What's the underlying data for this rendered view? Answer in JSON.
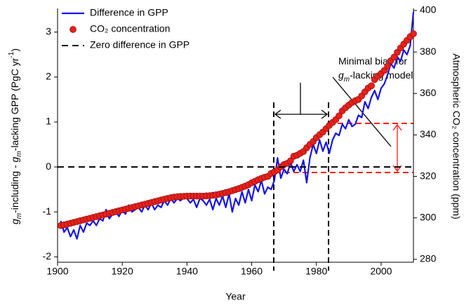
{
  "chart_data": {
    "type": "line-scatter-dual",
    "xlabel": "Year",
    "ylabel": [
      {
        "text": "g",
        "style": "italic"
      },
      {
        "text": "m",
        "style": "sub-italic"
      },
      {
        "text": "-including - "
      },
      {
        "text": "g",
        "style": "italic"
      },
      {
        "text": "m",
        "style": "sub-italic"
      },
      {
        "text": "-lacking GPP (PgC yr"
      },
      {
        "text": "-1",
        "style": "sup"
      },
      {
        "text": ")"
      }
    ],
    "y2label": "Atmospheric CO₂ concentration (ppm)",
    "annotation": [
      [
        {
          "text": "Minimal bias for"
        }
      ],
      [
        {
          "text": "g",
          "style": "italic"
        },
        {
          "text": "m",
          "style": "sub-italic"
        },
        {
          "text": "-lacking model"
        }
      ]
    ],
    "xlim": [
      1900,
      2010
    ],
    "xticks": [
      1900,
      1920,
      1940,
      1960,
      1980,
      2000
    ],
    "ylim": [
      -2.12,
      3.48
    ],
    "yticks": [
      -2,
      -1,
      0,
      1,
      2,
      3
    ],
    "y2lim": [
      278.6,
      400
    ],
    "y2ticks": [
      280,
      300,
      320,
      340,
      360,
      380,
      400
    ],
    "legend": "upper left",
    "series": [
      {
        "name": "Difference in GPP",
        "kind": "line",
        "color": "#1515e6",
        "x": [
          1901,
          1902,
          1903,
          1904,
          1905,
          1906,
          1907,
          1908,
          1909,
          1910,
          1911,
          1912,
          1913,
          1914,
          1915,
          1916,
          1917,
          1918,
          1919,
          1920,
          1921,
          1922,
          1923,
          1924,
          1925,
          1926,
          1927,
          1928,
          1929,
          1930,
          1931,
          1932,
          1933,
          1934,
          1935,
          1936,
          1937,
          1938,
          1939,
          1940,
          1941,
          1942,
          1943,
          1944,
          1945,
          1946,
          1947,
          1948,
          1949,
          1950,
          1951,
          1952,
          1953,
          1954,
          1955,
          1956,
          1957,
          1958,
          1959,
          1960,
          1961,
          1962,
          1963,
          1964,
          1965,
          1966,
          1967,
          1968,
          1969,
          1970,
          1971,
          1972,
          1973,
          1974,
          1975,
          1976,
          1977,
          1978,
          1979,
          1980,
          1981,
          1982,
          1983,
          1984,
          1985,
          1986,
          1987,
          1988,
          1989,
          1990,
          1991,
          1992,
          1993,
          1994,
          1995,
          1996,
          1997,
          1998,
          1999,
          2000,
          2001,
          2002,
          2003,
          2004,
          2005,
          2006,
          2007,
          2008,
          2009,
          2010
        ],
        "values": [
          -1.2,
          -1.45,
          -1.35,
          -1.55,
          -1.4,
          -1.6,
          -1.3,
          -1.45,
          -1.25,
          -1.3,
          -1.2,
          -1.3,
          -1.15,
          -1.2,
          -0.95,
          -1.15,
          -1.05,
          -1.0,
          -1.1,
          -0.95,
          -1.05,
          -0.85,
          -1.0,
          -0.95,
          -0.9,
          -1.0,
          -0.85,
          -0.95,
          -0.8,
          -0.95,
          -0.85,
          -0.9,
          -0.75,
          -0.85,
          -0.7,
          -0.8,
          -0.7,
          -0.75,
          -0.68,
          -0.7,
          -0.8,
          -0.72,
          -0.9,
          -0.7,
          -0.75,
          -0.85,
          -0.72,
          -0.95,
          -0.7,
          -0.85,
          -0.65,
          -0.9,
          -0.6,
          -1.0,
          -0.7,
          -0.85,
          -0.55,
          -0.8,
          -0.5,
          -0.75,
          -0.4,
          -0.55,
          -0.3,
          -0.6,
          -0.45,
          -0.5,
          -0.3,
          0.2,
          -0.25,
          -0.05,
          -0.15,
          0.1,
          -0.1,
          0.05,
          -0.1,
          0.15,
          -0.35,
          0.2,
          0.5,
          0.3,
          0.6,
          0.35,
          0.55,
          0.3,
          0.6,
          0.75,
          0.7,
          0.95,
          0.85,
          1.05,
          0.9,
          0.95,
          1.15,
          1.1,
          1.45,
          1.3,
          1.55,
          1.7,
          1.5,
          1.75,
          1.85,
          2.05,
          2.3,
          2.2,
          2.45,
          2.35,
          2.6,
          2.5,
          2.7,
          3.45
        ]
      },
      {
        "name": "CO₂ concentration",
        "kind": "scatter",
        "axis": "y2",
        "color": "#e8201a",
        "x": [
          1901,
          1902,
          1903,
          1904,
          1905,
          1906,
          1907,
          1908,
          1909,
          1910,
          1911,
          1912,
          1913,
          1914,
          1915,
          1916,
          1917,
          1918,
          1919,
          1920,
          1921,
          1922,
          1923,
          1924,
          1925,
          1926,
          1927,
          1928,
          1929,
          1930,
          1931,
          1932,
          1933,
          1934,
          1935,
          1936,
          1937,
          1938,
          1939,
          1940,
          1941,
          1942,
          1943,
          1944,
          1945,
          1946,
          1947,
          1948,
          1949,
          1950,
          1951,
          1952,
          1953,
          1954,
          1955,
          1956,
          1957,
          1958,
          1959,
          1960,
          1961,
          1962,
          1963,
          1964,
          1965,
          1966,
          1967,
          1968,
          1969,
          1970,
          1971,
          1972,
          1973,
          1974,
          1975,
          1976,
          1977,
          1978,
          1979,
          1980,
          1981,
          1982,
          1983,
          1984,
          1985,
          1986,
          1987,
          1988,
          1989,
          1990,
          1991,
          1992,
          1993,
          1994,
          1995,
          1996,
          1997,
          1998,
          1999,
          2000,
          2001,
          2002,
          2003,
          2004,
          2005,
          2006,
          2007,
          2008,
          2009,
          2010
        ],
        "values": [
          296.3,
          296.6,
          297.0,
          297.4,
          297.8,
          298.2,
          298.6,
          299.0,
          299.4,
          299.8,
          300.2,
          300.6,
          301.0,
          301.4,
          301.8,
          302.2,
          302.6,
          303.0,
          303.4,
          303.8,
          304.2,
          304.6,
          305.0,
          305.4,
          305.8,
          306.2,
          306.6,
          307.0,
          307.4,
          307.8,
          308.2,
          308.6,
          309.0,
          309.4,
          309.7,
          310.0,
          310.2,
          310.3,
          310.4,
          310.5,
          310.5,
          310.5,
          310.5,
          310.5,
          310.5,
          310.6,
          310.7,
          310.9,
          311.1,
          311.4,
          311.8,
          312.2,
          312.6,
          313.1,
          313.6,
          314.1,
          314.7,
          315.3,
          316.0,
          316.9,
          317.6,
          318.4,
          319.0,
          319.6,
          320.0,
          321.4,
          322.2,
          323.0,
          324.6,
          325.7,
          326.3,
          327.5,
          329.7,
          330.2,
          331.1,
          332.0,
          333.8,
          335.4,
          336.8,
          338.7,
          340.1,
          341.4,
          343.0,
          344.6,
          346.0,
          347.4,
          349.2,
          351.6,
          353.1,
          354.4,
          355.6,
          356.5,
          357.1,
          358.8,
          360.8,
          362.6,
          363.7,
          366.7,
          368.4,
          369.6,
          371.1,
          373.2,
          375.8,
          377.5,
          379.8,
          381.9,
          383.8,
          385.6,
          387.4,
          388.8
        ]
      },
      {
        "name": "Zero difference in GPP",
        "kind": "dashed-line",
        "color": "#000000",
        "x": [
          1900,
          2010
        ],
        "values": [
          0,
          0
        ]
      }
    ]
  }
}
